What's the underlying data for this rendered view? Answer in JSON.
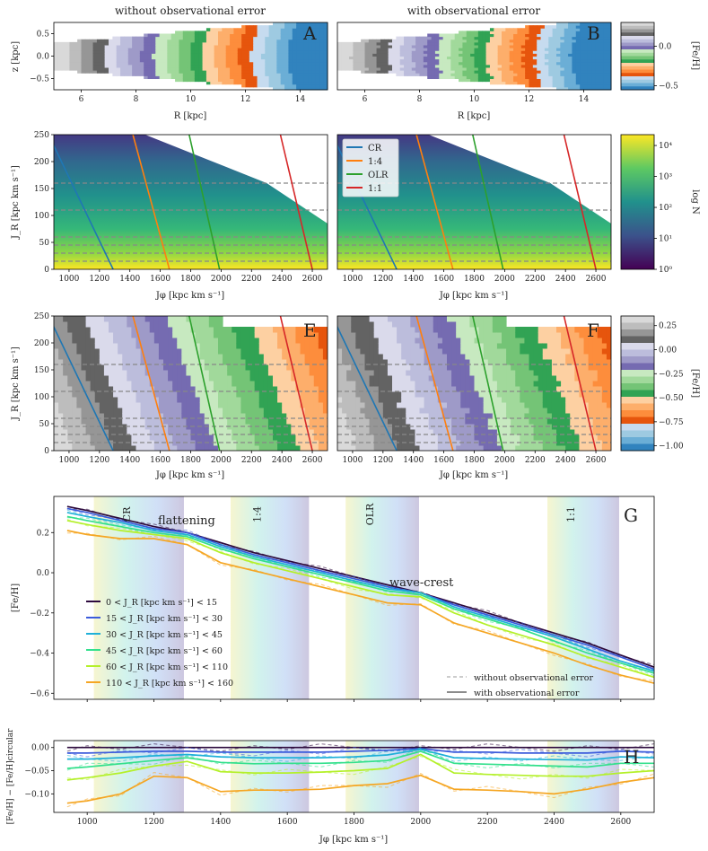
{
  "figure_width": 789,
  "chart_data": [
    {
      "id": "A",
      "type": "heatmap",
      "title": "without observational error",
      "panel_label": "A",
      "xlabel": "R [kpc]",
      "ylabel": "z [kpc]",
      "xlim": [
        5,
        15
      ],
      "ylim": [
        -0.75,
        0.75
      ],
      "xticks": [
        6,
        8,
        10,
        12,
        14
      ],
      "yticks": [
        0.5,
        0.0,
        -0.5
      ],
      "colorbar": "feh_disc"
    },
    {
      "id": "B",
      "type": "heatmap",
      "title": "with observational error",
      "panel_label": "B",
      "xlabel": "R [kpc]",
      "ylabel": "",
      "xlim": [
        5,
        15
      ],
      "ylim": [
        -0.75,
        0.75
      ],
      "xticks": [
        6,
        8,
        10,
        12,
        14
      ],
      "colorbar": "feh_disc"
    },
    {
      "id": "C",
      "type": "heatmap",
      "xlabel": "Jφ [kpc km s⁻¹]",
      "ylabel": "J_R [kpc km s⁻¹]",
      "xlim": [
        900,
        2700
      ],
      "ylim": [
        0,
        250
      ],
      "xticks": [
        1000,
        1200,
        1400,
        1600,
        1800,
        2000,
        2200,
        2400,
        2600
      ],
      "yticks": [
        0,
        50,
        100,
        150,
        200,
        250
      ],
      "hlines": [
        15,
        30,
        45,
        60,
        110,
        160
      ],
      "resonances": [
        {
          "name": "CR",
          "color": "#1f77b4",
          "jphi_at_0": 1290,
          "jphi_at_200": 950
        },
        {
          "name": "1:4",
          "color": "#ff7f0e",
          "jphi_at_0": 1660,
          "jphi_at_250": 1420
        },
        {
          "name": "OLR",
          "color": "#2ca02c",
          "jphi_at_0": 1990,
          "jphi_at_250": 1790
        },
        {
          "name": "1:1",
          "color": "#d62728",
          "jphi_at_0": 2600,
          "jphi_at_250": 2390
        }
      ]
    },
    {
      "id": "D",
      "type": "heatmap",
      "xlabel": "Jφ [kpc km s⁻¹]",
      "ylabel": "",
      "xlim": [
        900,
        2700
      ],
      "ylim": [
        0,
        250
      ],
      "xticks": [
        1000,
        1200,
        1400,
        1600,
        1800,
        2000,
        2200,
        2400,
        2600
      ],
      "legend": [
        "CR",
        "1:4",
        "OLR",
        "1:1"
      ]
    },
    {
      "id": "E",
      "type": "heatmap",
      "panel_label": "E",
      "xlabel": "Jφ [kpc km s⁻¹]",
      "ylabel": "J_R [kpc km s⁻¹]",
      "xlim": [
        900,
        2700
      ],
      "ylim": [
        0,
        250
      ],
      "xticks": [
        1000,
        1200,
        1400,
        1600,
        1800,
        2000,
        2200,
        2400,
        2600
      ],
      "yticks": [
        0,
        50,
        100,
        150,
        200,
        250
      ]
    },
    {
      "id": "F",
      "type": "heatmap",
      "panel_label": "F",
      "xlabel": "Jφ [kpc km s⁻¹]",
      "ylabel": "",
      "xlim": [
        900,
        2700
      ],
      "ylim": [
        0,
        250
      ],
      "xticks": [
        1000,
        1200,
        1400,
        1600,
        1800,
        2000,
        2200,
        2400,
        2600
      ]
    },
    {
      "id": "G",
      "type": "line",
      "panel_label": "G",
      "xlabel": "",
      "ylabel": "[Fe/H]",
      "xlim": [
        900,
        2700
      ],
      "ylim": [
        -0.63,
        0.38
      ],
      "yticks": [
        0.2,
        0.0,
        -0.2,
        -0.4,
        -0.6
      ],
      "bands": [
        {
          "label": "CR",
          "from": 1020,
          "to": 1290
        },
        {
          "label": "1:4",
          "from": 1430,
          "to": 1665
        },
        {
          "label": "OLR",
          "from": 1775,
          "to": 1995
        },
        {
          "label": "1:1",
          "from": 2380,
          "to": 2595
        }
      ],
      "annotations": [
        {
          "text": "flattening",
          "x": 1180,
          "y": 0.175
        },
        {
          "text": "wave-crest",
          "x": 1890,
          "y": -0.07
        }
      ],
      "x": [
        940,
        1000,
        1100,
        1200,
        1300,
        1400,
        1500,
        1600,
        1700,
        1800,
        1900,
        2000,
        2100,
        2200,
        2300,
        2400,
        2500,
        2600,
        2700
      ],
      "series": [
        {
          "name": "0 < J_R [kpc km s⁻¹] < 15",
          "color": "#2d0a3d",
          "values": [
            0.33,
            0.31,
            0.27,
            0.23,
            0.2,
            0.15,
            0.1,
            0.06,
            0.02,
            -0.02,
            -0.06,
            -0.1,
            -0.15,
            -0.2,
            -0.25,
            -0.3,
            -0.35,
            -0.41,
            -0.47
          ]
        },
        {
          "name": "15 < J_R [kpc km s⁻¹] < 30",
          "color": "#3b5bdb",
          "values": [
            0.32,
            0.3,
            0.26,
            0.22,
            0.2,
            0.14,
            0.09,
            0.05,
            0.01,
            -0.03,
            -0.07,
            -0.1,
            -0.16,
            -0.21,
            -0.26,
            -0.31,
            -0.36,
            -0.42,
            -0.48
          ]
        },
        {
          "name": "30 < J_R [kpc km s⁻¹] < 45",
          "color": "#1fb0d8",
          "values": [
            0.3,
            0.28,
            0.25,
            0.21,
            0.19,
            0.13,
            0.08,
            0.04,
            0.0,
            -0.04,
            -0.08,
            -0.1,
            -0.17,
            -0.22,
            -0.27,
            -0.32,
            -0.38,
            -0.44,
            -0.49
          ]
        },
        {
          "name": "45 < J_R [kpc km s⁻¹] < 60",
          "color": "#33e08c",
          "values": [
            0.28,
            0.26,
            0.23,
            0.2,
            0.18,
            0.12,
            0.07,
            0.03,
            -0.01,
            -0.05,
            -0.09,
            -0.11,
            -0.18,
            -0.23,
            -0.28,
            -0.34,
            -0.4,
            -0.45,
            -0.5
          ]
        },
        {
          "name": "60 < J_R [kpc km s⁻¹] < 110",
          "color": "#b4f02a",
          "values": [
            0.26,
            0.24,
            0.21,
            0.19,
            0.17,
            0.1,
            0.05,
            0.01,
            -0.03,
            -0.07,
            -0.11,
            -0.12,
            -0.2,
            -0.26,
            -0.31,
            -0.36,
            -0.42,
            -0.47,
            -0.52
          ]
        },
        {
          "name": "110 < J_R [kpc km s⁻¹] < 160",
          "color": "#f5a623",
          "values": [
            0.21,
            0.19,
            0.17,
            0.17,
            0.14,
            0.05,
            0.01,
            -0.03,
            -0.07,
            -0.11,
            -0.15,
            -0.16,
            -0.25,
            -0.3,
            -0.35,
            -0.4,
            -0.46,
            -0.51,
            -0.55
          ]
        }
      ],
      "style_legend": [
        {
          "label": "without observational error",
          "style": "dashed"
        },
        {
          "label": "with observational error",
          "style": "solid"
        }
      ]
    },
    {
      "id": "H",
      "type": "line",
      "panel_label": "H",
      "xlabel": "Jφ [kpc km s⁻¹]",
      "ylabel": "[Fe/H] − [Fe/H]circular",
      "xlim": [
        900,
        2700
      ],
      "ylim": [
        -0.14,
        0.015
      ],
      "xticks": [
        1000,
        1200,
        1400,
        1600,
        1800,
        2000,
        2200,
        2400,
        2600
      ],
      "yticks": [
        0.0,
        -0.05,
        -0.1
      ],
      "x": [
        940,
        1000,
        1100,
        1200,
        1300,
        1400,
        1500,
        1600,
        1700,
        1800,
        1900,
        2000,
        2100,
        2200,
        2300,
        2400,
        2500,
        2600,
        2700
      ],
      "series": [
        {
          "name": "0-15",
          "color": "#2d0a3d",
          "values": [
            0,
            0,
            0,
            0,
            0,
            0,
            0,
            0,
            0,
            0,
            0,
            0,
            0,
            0,
            0,
            0,
            0,
            0,
            0
          ]
        },
        {
          "name": "15-30",
          "color": "#3b5bdb",
          "values": [
            -0.012,
            -0.012,
            -0.01,
            -0.008,
            -0.008,
            -0.01,
            -0.01,
            -0.01,
            -0.01,
            -0.008,
            -0.006,
            -0.002,
            -0.01,
            -0.01,
            -0.012,
            -0.012,
            -0.012,
            -0.008,
            -0.01
          ]
        },
        {
          "name": "30-45",
          "color": "#1fb0d8",
          "values": [
            -0.025,
            -0.025,
            -0.022,
            -0.018,
            -0.015,
            -0.02,
            -0.022,
            -0.022,
            -0.022,
            -0.02,
            -0.016,
            -0.004,
            -0.022,
            -0.024,
            -0.025,
            -0.026,
            -0.027,
            -0.02,
            -0.022
          ]
        },
        {
          "name": "45-60",
          "color": "#33e08c",
          "values": [
            -0.045,
            -0.042,
            -0.035,
            -0.028,
            -0.022,
            -0.032,
            -0.035,
            -0.034,
            -0.034,
            -0.032,
            -0.028,
            -0.008,
            -0.034,
            -0.036,
            -0.038,
            -0.04,
            -0.042,
            -0.034,
            -0.034
          ]
        },
        {
          "name": "60-110",
          "color": "#b4f02a",
          "values": [
            -0.07,
            -0.065,
            -0.055,
            -0.04,
            -0.03,
            -0.052,
            -0.055,
            -0.055,
            -0.053,
            -0.05,
            -0.045,
            -0.015,
            -0.055,
            -0.058,
            -0.06,
            -0.062,
            -0.062,
            -0.055,
            -0.05
          ]
        },
        {
          "name": "110-160",
          "color": "#f5a623",
          "values": [
            -0.12,
            -0.115,
            -0.1,
            -0.062,
            -0.065,
            -0.095,
            -0.092,
            -0.092,
            -0.09,
            -0.082,
            -0.078,
            -0.06,
            -0.09,
            -0.092,
            -0.095,
            -0.1,
            -0.09,
            -0.075,
            -0.065
          ]
        }
      ]
    }
  ],
  "colorbars": {
    "feh_disc": {
      "label": "[Fe/H]",
      "ticks": [
        "0.0",
        "−0.5"
      ],
      "tick_values": [
        0.0,
        -0.5
      ],
      "range": [
        -0.55,
        0.3
      ]
    },
    "density": {
      "label": "log N",
      "ticks": [
        "10⁴",
        "10³",
        "10²",
        "10¹",
        "10⁰"
      ],
      "tick_values": [
        4,
        3,
        2,
        1,
        0
      ],
      "range": [
        0,
        4.35
      ]
    },
    "feh_actions": {
      "label": "[Fe/H]",
      "ticks": [
        "0.25",
        "0.00",
        "−0.25",
        "−0.50",
        "−0.75",
        "−1.00"
      ],
      "tick_values": [
        0.25,
        0.0,
        -0.25,
        -0.5,
        -0.75,
        -1.0
      ],
      "range": [
        -1.05,
        0.35
      ]
    }
  },
  "palette_feh": [
    "#3183be",
    "#6baed6",
    "#9ecae1",
    "#c6dbef",
    "#e6550d",
    "#fd8d3c",
    "#fdae6b",
    "#fdd0a2",
    "#31a354",
    "#74c476",
    "#a1d99b",
    "#c7e9c0",
    "#756bb1",
    "#9e9ac8",
    "#bcbddc",
    "#dadaeb",
    "#636363",
    "#969696",
    "#bdbdbd",
    "#d9d9d9"
  ]
}
